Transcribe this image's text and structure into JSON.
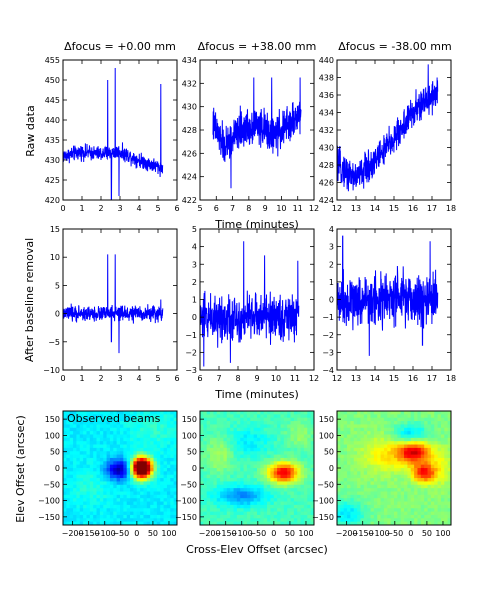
{
  "figure": {
    "titles": [
      "Δfocus = +0.00 mm",
      "Δfocus = +38.00 mm",
      "Δfocus = -38.00 mm"
    ],
    "row1_ylabel": "Raw data",
    "row2_ylabel": "After baseline removal",
    "row3_ylabel": "Elev Offset (arcsec)",
    "row1_xlabel": "Time (minutes)",
    "row2_xlabel": "Time (minutes)",
    "row3_xlabel": "Cross-Elev Offset (arcsec)",
    "beam_label": "Observed beams",
    "line_color": "#0000ff"
  },
  "chart_data": [
    {
      "type": "line",
      "panel": "raw-focus-0",
      "title": "Δfocus = +0.00 mm",
      "ylabel": "Raw data",
      "xlabel": "",
      "xlim": [
        0,
        6
      ],
      "ylim": [
        420,
        455
      ],
      "xticks": [
        "0",
        "1",
        "2",
        "3",
        "4",
        "5",
        "6"
      ],
      "yticks": [
        "420",
        "425",
        "430",
        "435",
        "440",
        "445",
        "450",
        "455"
      ],
      "x_range": [
        0,
        5.25
      ],
      "baseline": 431,
      "noise": 1.4,
      "trend": [
        [
          0,
          431
        ],
        [
          1,
          432
        ],
        [
          2,
          431.5
        ],
        [
          3,
          432
        ],
        [
          4,
          430
        ],
        [
          5.2,
          428
        ]
      ],
      "spikes": [
        [
          2.35,
          450
        ],
        [
          2.55,
          420
        ],
        [
          2.75,
          453
        ],
        [
          2.95,
          421
        ],
        [
          5.15,
          449
        ]
      ]
    },
    {
      "type": "line",
      "panel": "raw-focus-p38",
      "title": "Δfocus = +38.00 mm",
      "ylabel": "",
      "xlabel": "",
      "xlim": [
        5,
        12
      ],
      "ylim": [
        422,
        434
      ],
      "xticks": [
        "5",
        "6",
        "7",
        "8",
        "9",
        "10",
        "11",
        "12"
      ],
      "yticks": [
        "422",
        "424",
        "426",
        "428",
        "430",
        "432",
        "434"
      ],
      "x_range": [
        5.8,
        11.2
      ],
      "baseline": 428,
      "noise": 1.2,
      "trend": [
        [
          5.8,
          428.5
        ],
        [
          6.5,
          426.5
        ],
        [
          7.5,
          428
        ],
        [
          8.5,
          428.5
        ],
        [
          9.5,
          427.5
        ],
        [
          10.5,
          428.5
        ],
        [
          11.2,
          429.5
        ]
      ],
      "spikes": [
        [
          8.3,
          432.5
        ],
        [
          9.4,
          432.5
        ],
        [
          11.15,
          432.5
        ],
        [
          6.9,
          423
        ]
      ]
    },
    {
      "type": "line",
      "panel": "raw-focus-m38",
      "title": "Δfocus = -38.00 mm",
      "ylabel": "",
      "xlabel": "",
      "xlim": [
        12,
        18
      ],
      "ylim": [
        424,
        440
      ],
      "xticks": [
        "12",
        "13",
        "14",
        "15",
        "16",
        "17",
        "18"
      ],
      "yticks": [
        "424",
        "426",
        "428",
        "430",
        "432",
        "434",
        "436",
        "438",
        "440"
      ],
      "x_range": [
        12,
        17.3
      ],
      "baseline": 430,
      "noise": 1.4,
      "trend": [
        [
          12,
          428
        ],
        [
          13,
          426.5
        ],
        [
          14,
          428.5
        ],
        [
          15,
          431
        ],
        [
          16,
          434
        ],
        [
          17.3,
          436.5
        ]
      ],
      "spikes": [
        [
          16.8,
          439.5
        ],
        [
          12.6,
          425
        ]
      ]
    },
    {
      "type": "line",
      "panel": "clean-focus-0",
      "title": "",
      "ylabel": "After baseline removal",
      "xlabel": "",
      "xlim": [
        0,
        6
      ],
      "ylim": [
        -10,
        15
      ],
      "xticks": [
        "0",
        "1",
        "2",
        "3",
        "4",
        "5",
        "6"
      ],
      "yticks": [
        "−10",
        "−5",
        "0",
        "5",
        "10",
        "15"
      ],
      "x_range": [
        0,
        5.25
      ],
      "baseline": 0,
      "noise": 1.0,
      "trend": [
        [
          0,
          0
        ],
        [
          5.25,
          0
        ]
      ],
      "spikes": [
        [
          2.35,
          10.5
        ],
        [
          2.55,
          -5
        ],
        [
          2.75,
          10.5
        ],
        [
          2.95,
          -7
        ],
        [
          5.15,
          2.5
        ]
      ]
    },
    {
      "type": "line",
      "panel": "clean-focus-p38",
      "title": "",
      "ylabel": "",
      "xlabel": "Time (minutes)",
      "xlim": [
        6,
        12
      ],
      "ylim": [
        -3,
        5
      ],
      "xticks": [
        "6",
        "7",
        "8",
        "9",
        "10",
        "11",
        "12"
      ],
      "yticks": [
        "−3",
        "−2",
        "−1",
        "0",
        "1",
        "2",
        "3",
        "4",
        "5"
      ],
      "x_range": [
        6,
        11.2
      ],
      "baseline": 0,
      "noise": 1.0,
      "trend": [
        [
          6,
          0
        ],
        [
          11.2,
          0
        ]
      ],
      "spikes": [
        [
          8.3,
          4.3
        ],
        [
          9.4,
          3.5
        ],
        [
          11.15,
          3.2
        ],
        [
          6.2,
          -2.8
        ],
        [
          7.6,
          -2.6
        ]
      ]
    },
    {
      "type": "line",
      "panel": "clean-focus-m38",
      "title": "",
      "ylabel": "",
      "xlabel": "",
      "xlim": [
        12,
        18
      ],
      "ylim": [
        -4,
        4
      ],
      "xticks": [
        "12",
        "13",
        "14",
        "15",
        "16",
        "17",
        "18"
      ],
      "yticks": [
        "−4",
        "−3",
        "−2",
        "−1",
        "0",
        "1",
        "2",
        "3",
        "4"
      ],
      "x_range": [
        12,
        17.3
      ],
      "baseline": 0,
      "noise": 1.1,
      "trend": [
        [
          12,
          0
        ],
        [
          17.3,
          0
        ]
      ],
      "spikes": [
        [
          12.3,
          3.6
        ],
        [
          13.7,
          -3.2
        ],
        [
          16.9,
          3.3
        ],
        [
          16.5,
          -2.6
        ]
      ]
    },
    {
      "type": "heatmap",
      "panel": "beam-focus-0",
      "title": "",
      "ylabel": "Elev Offset (arcsec)",
      "xlabel": "",
      "xlim": [
        -230,
        125
      ],
      "ylim": [
        -175,
        175
      ],
      "xticks": [
        "−200",
        "−150",
        "−100",
        "−50",
        "0",
        "50",
        "100"
      ],
      "xtick_values": [
        -200,
        -150,
        -100,
        -50,
        0,
        50,
        100
      ],
      "yticks": [
        "−150",
        "−100",
        "−50",
        "0",
        "50",
        "100",
        "150"
      ],
      "ytick_values": [
        -150,
        -100,
        -50,
        0,
        50,
        100,
        150
      ],
      "background": 0.36,
      "sources": [
        [
          15,
          0,
          1.0,
          22,
          22
        ],
        [
          -55,
          -5,
          -0.32,
          28,
          22
        ],
        [
          -140,
          -55,
          0.05,
          45,
          40
        ],
        [
          60,
          120,
          0.06,
          60,
          40
        ]
      ],
      "legend": "Observed beams"
    },
    {
      "type": "heatmap",
      "panel": "beam-focus-p38",
      "title": "",
      "ylabel": "",
      "xlabel": "Cross-Elev Offset (arcsec)",
      "xlim": [
        -230,
        125
      ],
      "ylim": [
        -175,
        175
      ],
      "xticks": [
        "−200",
        "−150",
        "−100",
        "−50",
        "0",
        "50",
        "100"
      ],
      "xtick_values": [
        -200,
        -150,
        -100,
        -50,
        0,
        50,
        100
      ],
      "yticks": [
        "−150",
        "−100",
        "−50",
        "0",
        "50",
        "100",
        "150"
      ],
      "ytick_values": [
        -150,
        -100,
        -50,
        0,
        50,
        100,
        150
      ],
      "background": 0.44,
      "sources": [
        [
          30,
          -15,
          0.45,
          35,
          22
        ],
        [
          -100,
          -85,
          -0.18,
          55,
          22
        ],
        [
          -80,
          80,
          -0.08,
          45,
          30
        ],
        [
          -170,
          40,
          0.1,
          30,
          40
        ],
        [
          80,
          100,
          0.08,
          30,
          30
        ]
      ],
      "legend": ""
    },
    {
      "type": "heatmap",
      "panel": "beam-focus-m38",
      "title": "",
      "ylabel": "",
      "xlabel": "",
      "xlim": [
        -230,
        125
      ],
      "ylim": [
        -175,
        175
      ],
      "xticks": [
        "−200",
        "−150",
        "−100",
        "−50",
        "0",
        "50",
        "100"
      ],
      "xtick_values": [
        -200,
        -150,
        -100,
        -50,
        0,
        50,
        100
      ],
      "yticks": [
        "−150",
        "−100",
        "−50",
        "0",
        "50",
        "100",
        "150"
      ],
      "ytick_values": [
        -150,
        -100,
        -50,
        0,
        50,
        100,
        150
      ],
      "background": 0.5,
      "sources": [
        [
          10,
          50,
          0.42,
          35,
          25
        ],
        [
          40,
          -15,
          0.35,
          25,
          20
        ],
        [
          -80,
          40,
          0.14,
          50,
          40
        ],
        [
          0,
          100,
          -0.18,
          40,
          25
        ],
        [
          -200,
          -140,
          -0.15,
          40,
          30
        ],
        [
          90,
          0,
          0.1,
          30,
          40
        ]
      ],
      "legend": ""
    }
  ]
}
